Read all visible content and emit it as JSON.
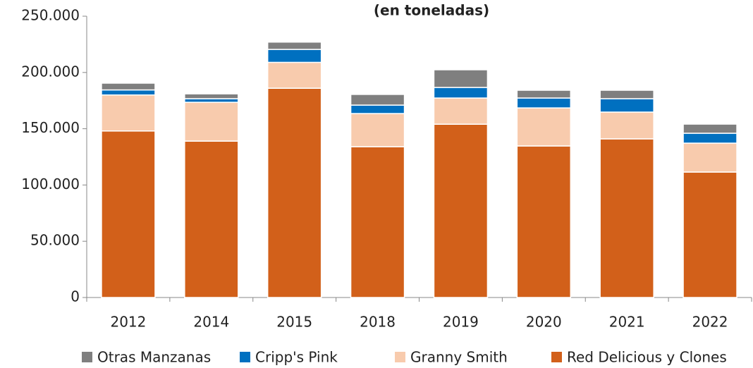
{
  "chart_data": {
    "type": "stacked_bar",
    "title": "(en toneladas)",
    "categories": [
      "2012",
      "2014",
      "2015",
      "2018",
      "2019",
      "2020",
      "2021",
      "2022"
    ],
    "series": [
      {
        "name": "Otras Manzanas",
        "color": "#7f7f7f",
        "values": [
          6000,
          4300,
          6500,
          9500,
          15700,
          6900,
          7500,
          8100
        ]
      },
      {
        "name": "Cripp's Pink",
        "color": "#0070c0",
        "values": [
          4500,
          3200,
          11500,
          7500,
          9400,
          8800,
          11900,
          8800
        ]
      },
      {
        "name": "Granny Smith",
        "color": "#f8cbad",
        "values": [
          32000,
          34500,
          23000,
          29500,
          23300,
          33800,
          23800,
          25700
        ]
      },
      {
        "name": "Red Delicious y Clones",
        "color": "#d2601a",
        "values": [
          148000,
          139000,
          186000,
          134000,
          154000,
          134700,
          141000,
          111500
        ]
      }
    ],
    "ylim": [
      0,
      250000
    ],
    "yticks": [
      0,
      {
        "value": 50000,
        "label": "50.000"
      },
      {
        "value": 100000,
        "label": "100.000"
      },
      {
        "value": 150000,
        "label": "150.000"
      },
      {
        "value": 200000,
        "label": "200.000"
      },
      {
        "value": 250000,
        "label": "250.000"
      }
    ]
  }
}
